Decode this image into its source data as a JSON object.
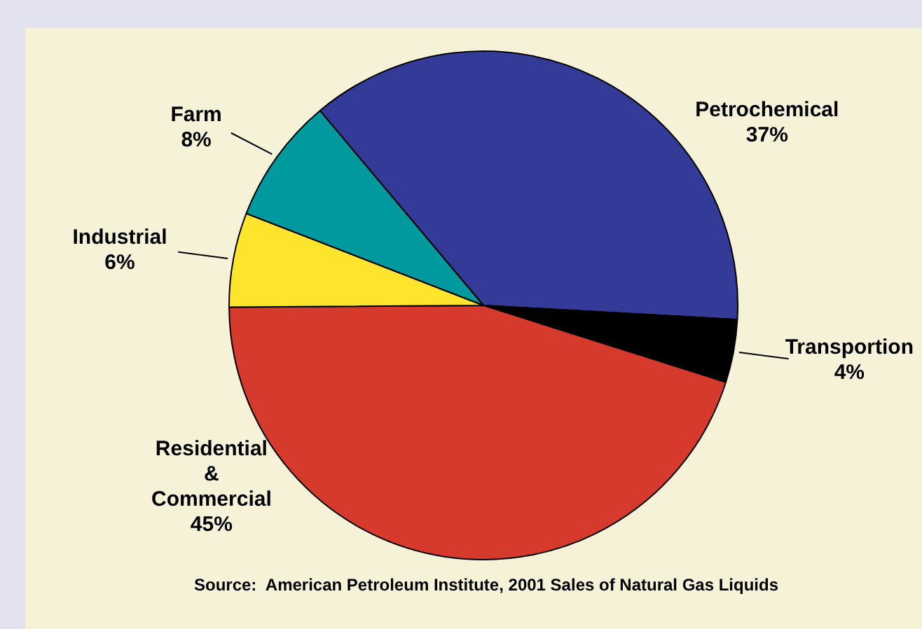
{
  "chart_data": {
    "type": "pie",
    "categories": [
      "Petrochemical",
      "Transportion",
      "Residential & Commercial",
      "Industrial",
      "Farm"
    ],
    "values": [
      37,
      4,
      45,
      6,
      8
    ],
    "colors": [
      "#343a97",
      "#000000",
      "#d63a2c",
      "#fde52d",
      "#00999e"
    ],
    "value_labels": [
      "37%",
      "4%",
      "45%",
      "6%",
      "8%"
    ],
    "legend": false,
    "annotations": [
      "Source:  American Petroleum Institute, 2001 Sales of Natural Gas Liquids"
    ]
  }
}
